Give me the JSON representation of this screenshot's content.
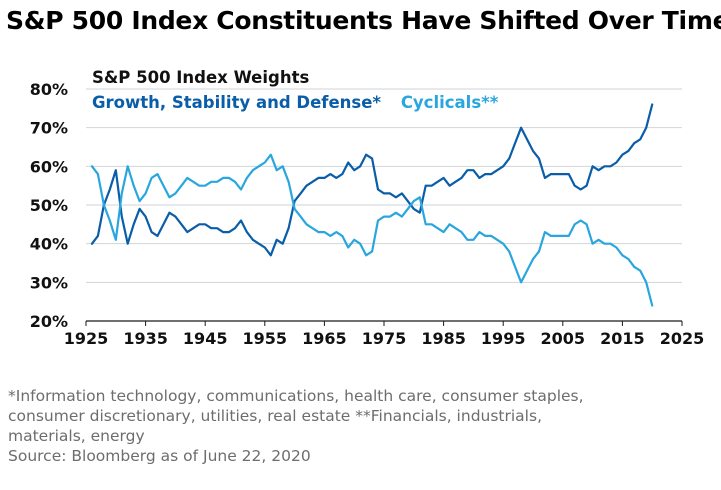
{
  "title": "S&P 500 Index Constituents Have Shifted Over Time",
  "notes": {
    "line1": "*Information technology, communications, health care, consumer staples,",
    "line2": "consumer discretionary, utilities, real estate **Financials, industrials,",
    "line3": "materials, energy",
    "source": "Source: Bloomberg as of June 22, 2020"
  },
  "colors": {
    "growth": "#0a5da8",
    "cyclicals": "#2aa6df",
    "grid": "#cfd4d8"
  },
  "chart_data": {
    "type": "line",
    "title": "S&P 500 Index Weights",
    "xlabel": "",
    "ylabel": "",
    "xlim": [
      1925,
      2025
    ],
    "ylim": [
      20,
      80
    ],
    "x_ticks": [
      "1925",
      "1935",
      "1945",
      "1955",
      "1965",
      "1975",
      "1985",
      "1995",
      "2005",
      "2015",
      "2025"
    ],
    "y_ticks": [
      "20%",
      "30%",
      "40%",
      "50%",
      "60%",
      "70%",
      "80%"
    ],
    "legend_position": "top-left",
    "series": [
      {
        "name": "Growth, Stability and Defense*",
        "x": [
          1926,
          1927,
          1928,
          1929,
          1930,
          1931,
          1932,
          1933,
          1934,
          1935,
          1936,
          1937,
          1938,
          1939,
          1940,
          1941,
          1942,
          1943,
          1944,
          1945,
          1946,
          1947,
          1948,
          1949,
          1950,
          1951,
          1952,
          1953,
          1954,
          1955,
          1956,
          1957,
          1958,
          1959,
          1960,
          1961,
          1962,
          1963,
          1964,
          1965,
          1966,
          1967,
          1968,
          1969,
          1970,
          1971,
          1972,
          1973,
          1974,
          1975,
          1976,
          1977,
          1978,
          1979,
          1980,
          1981,
          1982,
          1983,
          1984,
          1985,
          1986,
          1987,
          1988,
          1989,
          1990,
          1991,
          1992,
          1993,
          1994,
          1995,
          1996,
          1997,
          1998,
          1999,
          2000,
          2001,
          2002,
          2003,
          2004,
          2005,
          2006,
          2007,
          2008,
          2009,
          2010,
          2011,
          2012,
          2013,
          2014,
          2015,
          2016,
          2017,
          2018,
          2019,
          2020
        ],
        "values": [
          40,
          42,
          50,
          54,
          59,
          47,
          40,
          45,
          49,
          47,
          43,
          42,
          45,
          48,
          47,
          45,
          43,
          44,
          45,
          45,
          44,
          44,
          43,
          43,
          44,
          46,
          43,
          41,
          40,
          39,
          37,
          41,
          40,
          44,
          51,
          53,
          55,
          56,
          57,
          57,
          58,
          57,
          58,
          61,
          59,
          60,
          63,
          62,
          54,
          53,
          53,
          52,
          53,
          51,
          49,
          48,
          55,
          55,
          56,
          57,
          55,
          56,
          57,
          59,
          59,
          57,
          58,
          58,
          59,
          60,
          62,
          66,
          70,
          67,
          64,
          62,
          57,
          58,
          58,
          58,
          58,
          55,
          54,
          55,
          60,
          59,
          60,
          60,
          61,
          63,
          64,
          66,
          67,
          70,
          76
        ]
      },
      {
        "name": "Cyclicals**",
        "x": [
          1926,
          1927,
          1928,
          1929,
          1930,
          1931,
          1932,
          1933,
          1934,
          1935,
          1936,
          1937,
          1938,
          1939,
          1940,
          1941,
          1942,
          1943,
          1944,
          1945,
          1946,
          1947,
          1948,
          1949,
          1950,
          1951,
          1952,
          1953,
          1954,
          1955,
          1956,
          1957,
          1958,
          1959,
          1960,
          1961,
          1962,
          1963,
          1964,
          1965,
          1966,
          1967,
          1968,
          1969,
          1970,
          1971,
          1972,
          1973,
          1974,
          1975,
          1976,
          1977,
          1978,
          1979,
          1980,
          1981,
          1982,
          1983,
          1984,
          1985,
          1986,
          1987,
          1988,
          1989,
          1990,
          1991,
          1992,
          1993,
          1994,
          1995,
          1996,
          1997,
          1998,
          1999,
          2000,
          2001,
          2002,
          2003,
          2004,
          2005,
          2006,
          2007,
          2008,
          2009,
          2010,
          2011,
          2012,
          2013,
          2014,
          2015,
          2016,
          2017,
          2018,
          2019,
          2020
        ],
        "values": [
          60,
          58,
          50,
          46,
          41,
          53,
          60,
          55,
          51,
          53,
          57,
          58,
          55,
          52,
          53,
          55,
          57,
          56,
          55,
          55,
          56,
          56,
          57,
          57,
          56,
          54,
          57,
          59,
          60,
          61,
          63,
          59,
          60,
          56,
          49,
          47,
          45,
          44,
          43,
          43,
          42,
          43,
          42,
          39,
          41,
          40,
          37,
          38,
          46,
          47,
          47,
          48,
          47,
          49,
          51,
          52,
          45,
          45,
          44,
          43,
          45,
          44,
          43,
          41,
          41,
          43,
          42,
          42,
          41,
          40,
          38,
          34,
          30,
          33,
          36,
          38,
          43,
          42,
          42,
          42,
          42,
          45,
          46,
          45,
          40,
          41,
          40,
          40,
          39,
          37,
          36,
          34,
          33,
          30,
          24
        ]
      }
    ]
  }
}
